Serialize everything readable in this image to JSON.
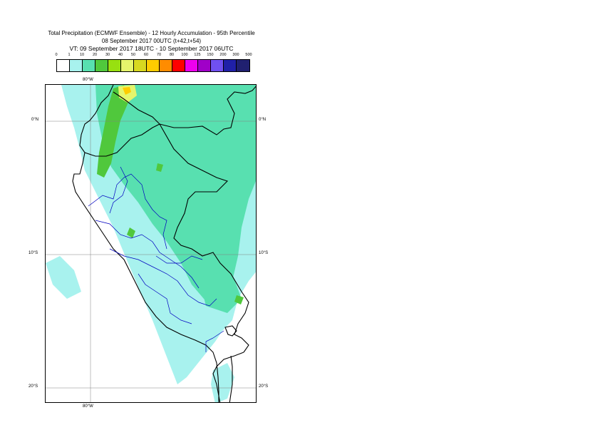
{
  "title": {
    "line1": "Total Precipitation (ECMWF Ensemble) - 12 Hourly Accumulation - 95th Percentile",
    "line2": "08 September 2017 00UTC (t+42,t+54)",
    "line3": "VT: 09 September 2017 18UTC - 10 September 2017 06UTC"
  },
  "legend": {
    "thresholds": [
      "0",
      "1",
      "10",
      "20",
      "30",
      "40",
      "50",
      "60",
      "70",
      "80",
      "100",
      "125",
      "150",
      "200",
      "300",
      "500"
    ],
    "colors": [
      "#ffffff",
      "#a8f2ee",
      "#58e0b0",
      "#50c83c",
      "#98e010",
      "#e6f56c",
      "#d8d820",
      "#ffcc00",
      "#ff8c00",
      "#ff0000",
      "#ee00ee",
      "#a000c8",
      "#7050f0",
      "#2020a8",
      "#202070",
      "#0a0a40"
    ]
  },
  "axes": {
    "top_lon": "80°W",
    "bottom_lon": "80°W",
    "lat_right": [
      "0°N",
      "10°S",
      "20°S"
    ],
    "lat_left": [
      "0°N",
      "10°S",
      "20°S"
    ]
  },
  "map": {
    "colors": {
      "light": "#a8f2ee",
      "mid": "#58e0b0",
      "green": "#50c83c",
      "yellow": "#e6f56c",
      "orange": "#ffcc00",
      "country_border": "#000000",
      "region_border": "#0000c0",
      "grid": "#808080"
    }
  }
}
